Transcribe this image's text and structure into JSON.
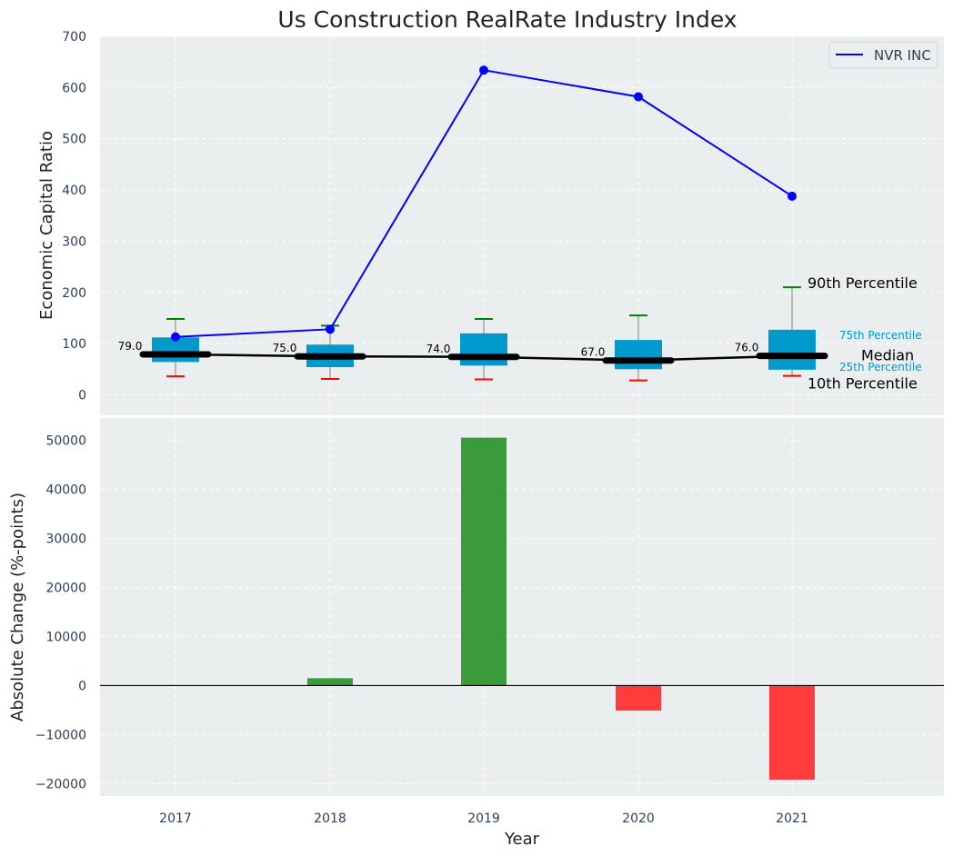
{
  "colors": {
    "plot_bg": "#EAEEEF",
    "grid": "#FFFFFF",
    "box_fill": "#0099CC",
    "whisker": "#808080",
    "p90_cap": "#008000",
    "p10_cap": "#FF0000",
    "median_line": "#000000",
    "company_line": "#0000FF",
    "bar_positive": "#3A9A3C",
    "bar_negative": "#FF3B3B",
    "axis_text": "#2F3E55",
    "percentile_label": "#0099CC"
  },
  "chart_data": [
    {
      "type": "box-line",
      "title": "Us Construction RealRate Industry Index",
      "xlabel": "",
      "ylabel": "Economic Capital Ratio",
      "ylim": [
        -40,
        700
      ],
      "yticks": [
        "0",
        "100",
        "200",
        "300",
        "400",
        "500",
        "600",
        "700"
      ],
      "categories": [
        "2017",
        "2018",
        "2019",
        "2020",
        "2021"
      ],
      "p10": [
        36,
        31,
        30,
        28,
        37
      ],
      "p25": [
        64,
        54,
        57,
        50,
        49
      ],
      "median": [
        79,
        75,
        74,
        67,
        76
      ],
      "p75": [
        112,
        98,
        120,
        107,
        127
      ],
      "p90": [
        148,
        135,
        148,
        155,
        210
      ],
      "median_labels": [
        "79.0",
        "75.0",
        "74.0",
        "67.0",
        "76.0"
      ],
      "series": [
        {
          "name": "NVR INC",
          "values": [
            113,
            128,
            634,
            582,
            388
          ]
        }
      ],
      "legend": {
        "position": "top-right",
        "entries": [
          "NVR INC"
        ]
      },
      "annotations": {
        "p90": "90th Percentile",
        "p75": "75th Percentile",
        "median": "Median",
        "p25": "25th Percentile",
        "p10": "10th Percentile"
      },
      "grid": true
    },
    {
      "type": "bar",
      "title": "",
      "xlabel": "Year",
      "ylabel": "Absolute Change (%-points)",
      "ylim": [
        -22500,
        54500
      ],
      "yticks": [
        "−20000",
        "−10000",
        "0",
        "10000",
        "20000",
        "30000",
        "40000",
        "50000"
      ],
      "categories": [
        "2017",
        "2018",
        "2019",
        "2020",
        "2021"
      ],
      "values": [
        0,
        1500,
        50500,
        -5100,
        -19200
      ],
      "grid": true
    }
  ]
}
